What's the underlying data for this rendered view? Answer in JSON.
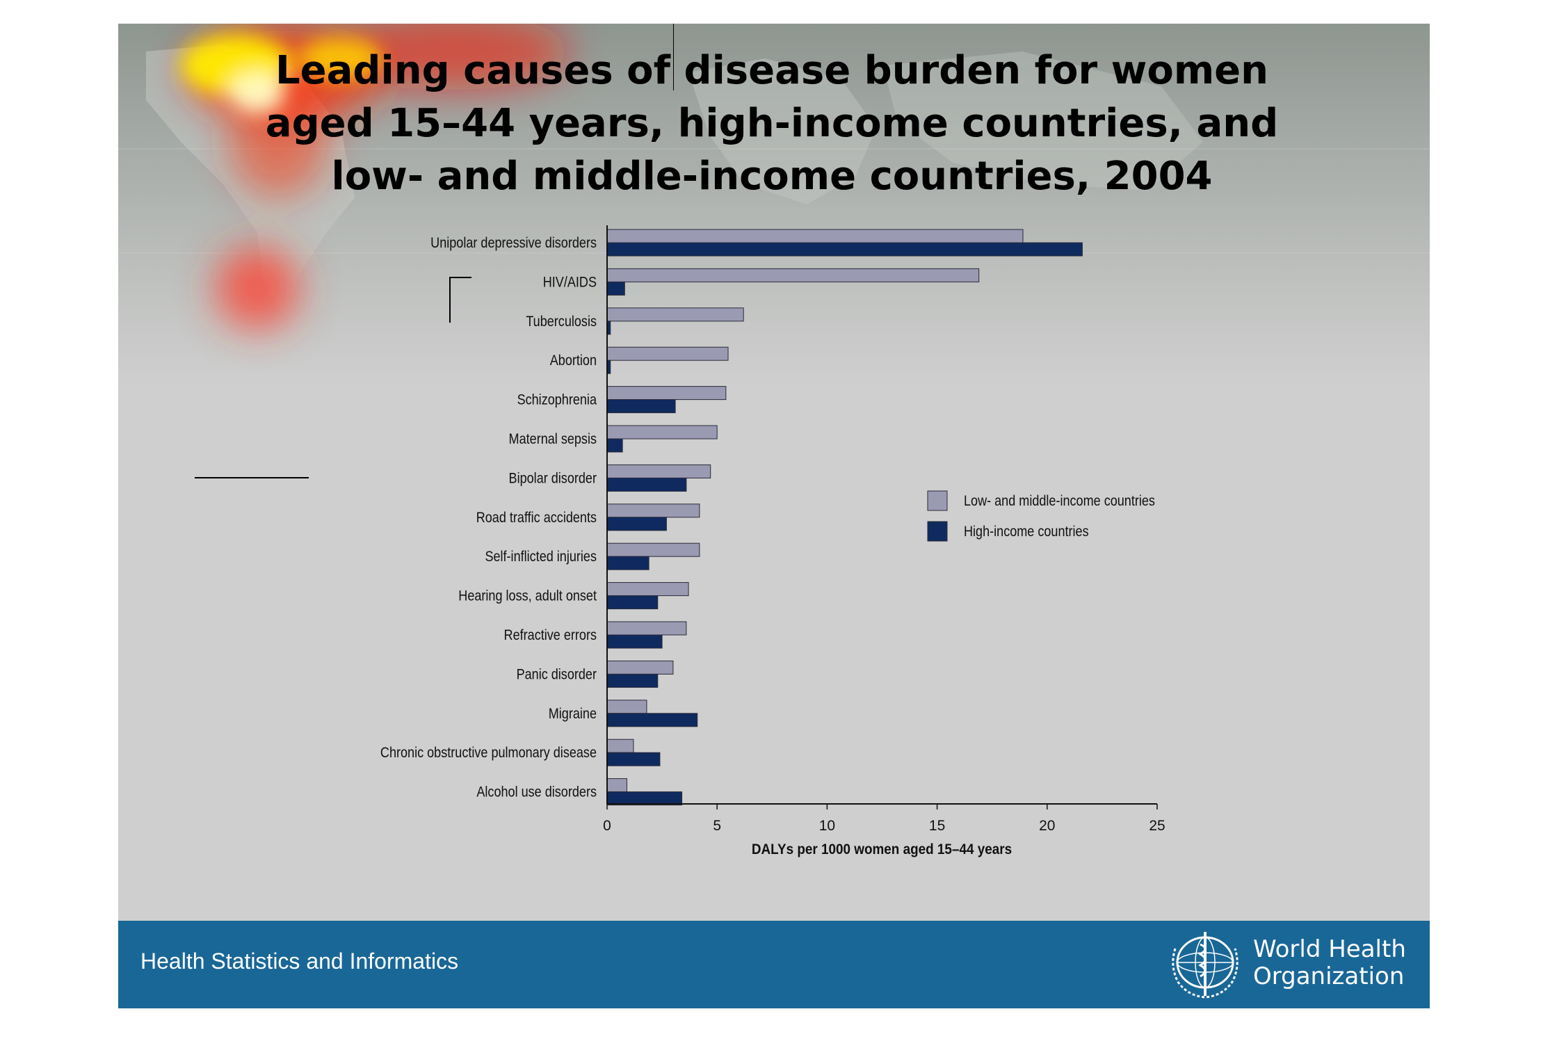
{
  "slide": {
    "title": "Leading causes of disease burden for women aged 15–44 years, high-income countries, and low- and middle-income countries, 2004",
    "footer_text": "Health Statistics and Informatics",
    "logo_text": [
      "World Health",
      "Organization"
    ],
    "colors": {
      "footer": "#196797",
      "background": "#cfcfcf"
    }
  },
  "chart_data": {
    "type": "bar",
    "orientation": "horizontal",
    "categories": [
      "Unipolar depressive disorders",
      "HIV/AIDS",
      "Tuberculosis",
      "Abortion",
      "Schizophrenia",
      "Maternal sepsis",
      "Bipolar disorder",
      "Road traffic accidents",
      "Self-inflicted injuries",
      "Hearing loss, adult onset",
      "Refractive errors",
      "Panic disorder",
      "Migraine",
      "Chronic obstructive pulmonary disease",
      "Alcohol use disorders"
    ],
    "series": [
      {
        "name": "Low- and middle-income countries",
        "color": "#9a9ab2",
        "values": [
          18.9,
          16.9,
          6.2,
          5.5,
          5.4,
          5.0,
          4.7,
          4.2,
          4.2,
          3.7,
          3.6,
          3.0,
          1.8,
          1.2,
          0.9
        ]
      },
      {
        "name": "High-income countries",
        "color": "#0f2a5e",
        "values": [
          21.6,
          0.8,
          0.15,
          0.15,
          3.1,
          0.7,
          3.6,
          2.7,
          1.9,
          2.3,
          2.5,
          2.3,
          4.1,
          2.4,
          3.4
        ]
      }
    ],
    "xlabel": "DALYs per 1000 women aged 15–44 years",
    "xticks": [
      0,
      5,
      10,
      15,
      20,
      25
    ],
    "xlim": [
      0,
      25
    ],
    "legend_position": "right-middle",
    "grid": false
  }
}
